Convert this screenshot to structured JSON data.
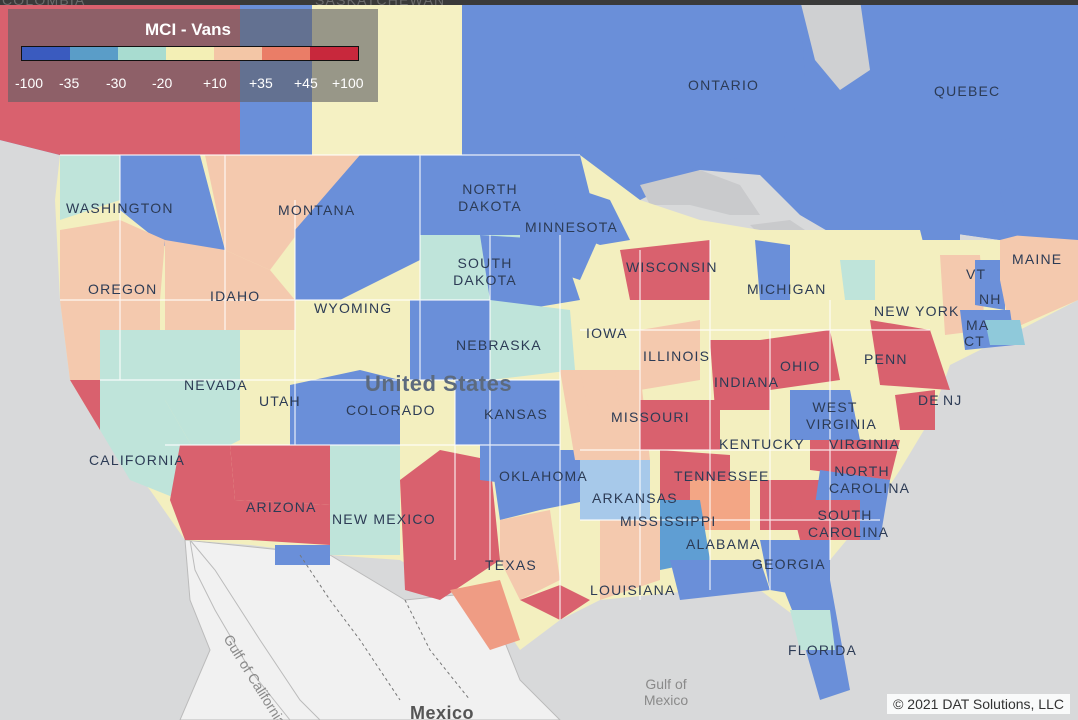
{
  "legend": {
    "title": "MCI - Vans",
    "ticks": [
      "-100",
      "-35",
      "-30",
      "-20",
      "+10",
      "+35",
      "+45",
      "+100"
    ],
    "colors": [
      "#3a5bbf",
      "#5a9dc8",
      "#a8dcd0",
      "#f3efb5",
      "#f3c6a6",
      "#ea7d67",
      "#c8283c"
    ]
  },
  "map": {
    "country_label": "United States",
    "neighbor_label": "Mexico",
    "water_labels": [
      "Gulf of California",
      "Gulf of Mexico"
    ],
    "region_labels": [
      "ONTARIO",
      "QUEBEC",
      "WASHINGTON",
      "MONTANA",
      "NORTH DAKOTA",
      "MINNESOTA",
      "OREGON",
      "IDAHO",
      "SOUTH DAKOTA",
      "WISCONSIN",
      "MICHIGAN",
      "MAINE",
      "WYOMING",
      "NEBRASKA",
      "IOWA",
      "ILLINOIS",
      "INDIANA",
      "OHIO",
      "PENN",
      "NEW YORK",
      "VT",
      "NH",
      "MA",
      "CT",
      "NJ",
      "DE",
      "NEVADA",
      "UTAH",
      "COLORADO",
      "KANSAS",
      "MISSOURI",
      "WEST VIRGINIA",
      "VIRGINIA",
      "KENTUCKY",
      "CALIFORNIA",
      "ARIZONA",
      "NEW MEXICO",
      "OKLAHOMA",
      "TENNESSEE",
      "NORTH CAROLINA",
      "ARKANSAS",
      "SOUTH CAROLINA",
      "MISSISSIPPI",
      "ALABAMA",
      "GEORGIA",
      "TEXAS",
      "LOUISIANA",
      "FLORIDA",
      "SASKATCHEWAN",
      "COLOMBIA"
    ]
  },
  "copyright": "© 2021 DAT Solutions, LLC"
}
